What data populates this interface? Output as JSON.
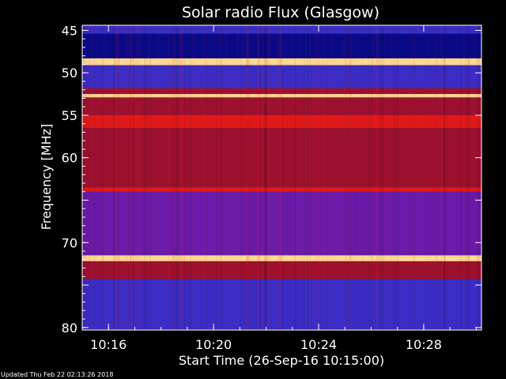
{
  "chart_data": {
    "type": "heatmap",
    "title": "Solar radio Flux (Glasgow)",
    "xlabel": "Start Time (26-Sep-16 10:15:00)",
    "ylabel": "Frequency [MHz]",
    "x_ticks": [
      "10:16",
      "10:20",
      "10:24",
      "10:28"
    ],
    "x_tick_minutes": [
      1,
      5,
      9,
      13
    ],
    "xlim_minutes": [
      0,
      15.2
    ],
    "y_ticks": [
      45,
      50,
      55,
      60,
      65,
      70,
      75,
      80
    ],
    "y_tick_labels": [
      "45",
      "50",
      "55",
      "60",
      "",
      "70",
      "",
      "80"
    ],
    "ylim": [
      44.4,
      80.3
    ],
    "y_reversed": true,
    "bands": [
      {
        "freq_from": 44.4,
        "freq_to": 45.4,
        "level": "low"
      },
      {
        "freq_from": 45.4,
        "freq_to": 48.3,
        "level": "very-low"
      },
      {
        "freq_from": 48.3,
        "freq_to": 49.1,
        "level": "saturated"
      },
      {
        "freq_from": 49.1,
        "freq_to": 51.8,
        "level": "low"
      },
      {
        "freq_from": 51.8,
        "freq_to": 52.5,
        "level": "medium"
      },
      {
        "freq_from": 52.5,
        "freq_to": 52.9,
        "level": "saturated"
      },
      {
        "freq_from": 52.9,
        "freq_to": 55.0,
        "level": "medium"
      },
      {
        "freq_from": 55.0,
        "freq_to": 56.5,
        "level": "high"
      },
      {
        "freq_from": 56.5,
        "freq_to": 63.5,
        "level": "medium"
      },
      {
        "freq_from": 63.5,
        "freq_to": 64.0,
        "level": "high"
      },
      {
        "freq_from": 64.0,
        "freq_to": 71.5,
        "level": "medium-low"
      },
      {
        "freq_from": 71.5,
        "freq_to": 72.2,
        "level": "saturated"
      },
      {
        "freq_from": 72.2,
        "freq_to": 74.3,
        "level": "medium"
      },
      {
        "freq_from": 74.3,
        "freq_to": 80.3,
        "level": "low"
      }
    ],
    "colors": {
      "very-low": "#0a0a88",
      "low": "#3a2cc4",
      "medium-low": "#6a1aa8",
      "medium": "#9c1030",
      "high": "#e01818",
      "saturated": "#ffd890"
    },
    "footer": "Updated Thu Feb 22 02:13:26 2018"
  }
}
